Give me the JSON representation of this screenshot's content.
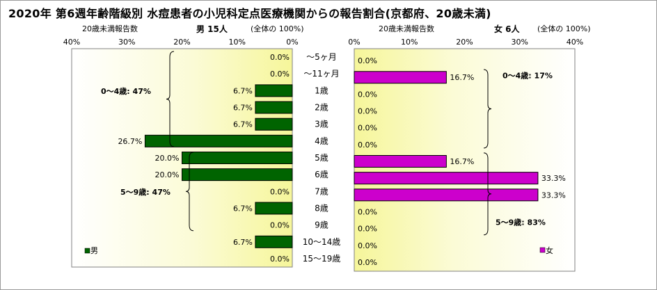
{
  "title": "2020年 第6週年齢階級別 水痘患者の小児科定点医療機関からの報告割合(京都府、20歳未満)",
  "male_header": {
    "left": "20歳未満報告数",
    "center": "男 15人",
    "right": "(全体の 100%)"
  },
  "female_header": {
    "left": "20歳未満報告数",
    "center": "女 6人",
    "right": "(全体の 100%)"
  },
  "chart_data": [
    {
      "type": "bar",
      "orientation": "horizontal",
      "direction": "right-to-left",
      "categories": [
        "～5ヶ月",
        "～11ヶ月",
        "1歳",
        "2歳",
        "3歳",
        "4歳",
        "5歳",
        "6歳",
        "7歳",
        "8歳",
        "9歳",
        "10～14歳",
        "15～19歳"
      ],
      "series": [
        {
          "name": "男",
          "color": "#006400",
          "values": [
            0.0,
            0.0,
            6.7,
            6.7,
            6.7,
            26.7,
            20.0,
            20.0,
            0.0,
            6.7,
            0.0,
            6.7,
            0.0
          ]
        }
      ],
      "value_labels": [
        "0.0%",
        "0.0%",
        "6.7%",
        "6.7%",
        "6.7%",
        "26.7%",
        "20.0%",
        "20.0%",
        "0.0%",
        "6.7%",
        "0.0%",
        "6.7%",
        "0.0%"
      ],
      "xlim": [
        0,
        40
      ],
      "x_ticks": [
        "40%",
        "30%",
        "20%",
        "10%",
        "0%"
      ],
      "annotations": [
        "0～4歳: 47%",
        "5～9歳: 47%"
      ],
      "legend": "bottom-left"
    },
    {
      "type": "bar",
      "orientation": "horizontal",
      "direction": "left-to-right",
      "categories": [
        "～5ヶ月",
        "～11ヶ月",
        "1歳",
        "2歳",
        "3歳",
        "4歳",
        "5歳",
        "6歳",
        "7歳",
        "8歳",
        "9歳",
        "10～14歳",
        "15～19歳"
      ],
      "series": [
        {
          "name": "女",
          "color": "#CC00CC",
          "values": [
            0.0,
            16.7,
            0.0,
            0.0,
            0.0,
            0.0,
            16.7,
            33.3,
            33.3,
            0.0,
            0.0,
            0.0,
            0.0
          ]
        }
      ],
      "value_labels": [
        "0.0%",
        "16.7%",
        "0.0%",
        "0.0%",
        "0.0%",
        "0.0%",
        "16.7%",
        "33.3%",
        "33.3%",
        "0.0%",
        "0.0%",
        "0.0%",
        "0.0%"
      ],
      "xlim": [
        0,
        40
      ],
      "x_ticks": [
        "0%",
        "10%",
        "20%",
        "30%",
        "40%"
      ],
      "annotations": [
        "0～4歳: 17%",
        "5～9歳: 83%"
      ],
      "legend": "bottom-right"
    }
  ]
}
